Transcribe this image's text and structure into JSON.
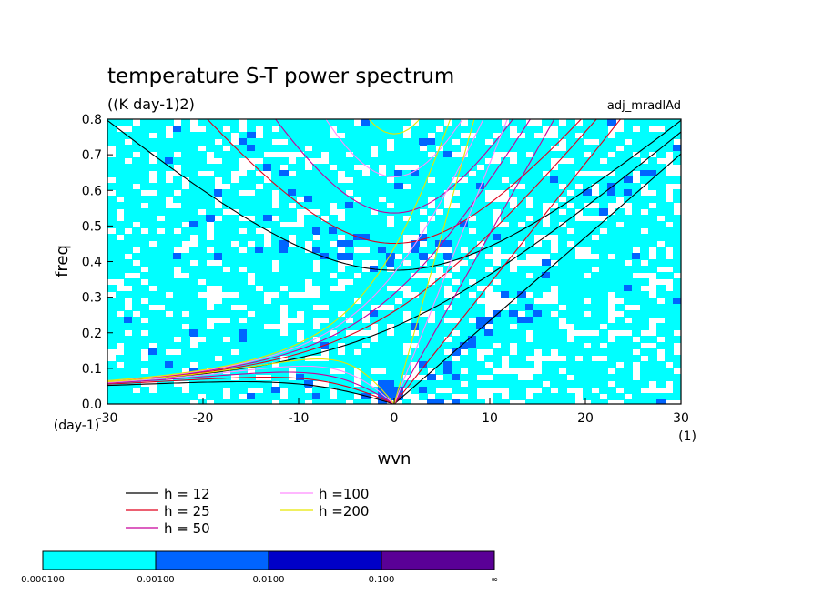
{
  "chart_data": {
    "type": "heatmap",
    "title": "temperature S-T power spectrum",
    "subtitle": "((K day-1)2)",
    "run_label": "adj_mradlAd",
    "xlabel": "wvn",
    "ylabel": "freq",
    "x_unit": "(1)",
    "y_unit": "(day-1)",
    "xlim": [
      -30,
      30
    ],
    "ylim": [
      0,
      0.8
    ],
    "x_ticks": [
      "-30",
      "-20",
      "-10",
      "0",
      "10",
      "20",
      "30"
    ],
    "y_ticks": [
      "0.0",
      "0.1",
      "0.2",
      "0.3",
      "0.4",
      "0.5",
      "0.6",
      "0.7",
      "0.8"
    ],
    "x_tick_values": [
      -30,
      -20,
      -10,
      0,
      10,
      20,
      30
    ],
    "y_tick_values": [
      0,
      0.1,
      0.2,
      0.3,
      0.4,
      0.5,
      0.6,
      0.7,
      0.8
    ],
    "dispersion_curves": [
      {
        "label": "h = 12",
        "h": 12,
        "color": "#000000"
      },
      {
        "label": "h = 25",
        "h": 25,
        "color": "#e0001c"
      },
      {
        "label": "h = 50",
        "h": 50,
        "color": "#c8009a"
      },
      {
        "label": "h =100",
        "h": 100,
        "color": "#ff8cff"
      },
      {
        "label": "h =200",
        "h": 200,
        "color": "#e6e600"
      }
    ],
    "colorbar": {
      "colors": [
        "#00ffff",
        "#0064ff",
        "#0000c8",
        "#5a0096"
      ],
      "labels": [
        "0.000100",
        "0.00100",
        "0.0100",
        "0.100",
        "∞"
      ]
    }
  }
}
